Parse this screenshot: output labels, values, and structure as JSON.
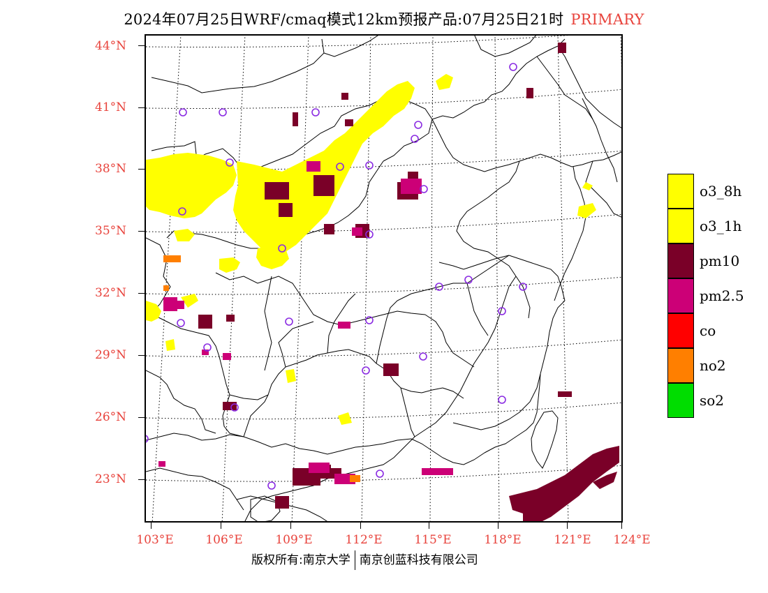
{
  "header": {
    "title": "2024年07月25日WRF/cmaq模式12km预报产品:07月25日21时",
    "tag": "PRIMARY",
    "tag_color": "#e8433c"
  },
  "axes": {
    "lat_labels": [
      "44°N",
      "41°N",
      "38°N",
      "35°N",
      "32°N",
      "29°N",
      "26°N",
      "23°N"
    ],
    "lon_labels": [
      "103°E",
      "106°E",
      "109°E",
      "112°E",
      "115°E",
      "118°E",
      "121°E",
      "124°E"
    ],
    "label_color": "#e8433c"
  },
  "legend": {
    "items": [
      {
        "label": "o3_8h",
        "color": "#ffff00"
      },
      {
        "label": "o3_1h",
        "color": "#ffff00"
      },
      {
        "label": "pm10",
        "color": "#7a0028"
      },
      {
        "label": "pm2.5",
        "color": "#cc0077"
      },
      {
        "label": "co",
        "color": "#ff0000"
      },
      {
        "label": "no2",
        "color": "#ff7f00"
      },
      {
        "label": "so2",
        "color": "#00dd00"
      }
    ]
  },
  "footer": {
    "left": "版权所有:南京大学",
    "right": "南京创蓝科技有限公司"
  },
  "map": {
    "pollutant_colors": {
      "o3": "#ffff00",
      "pm10": "#7a0028",
      "pm25": "#cc0077",
      "no2": "#ff7f00",
      "station_marker": "#8a2be2"
    }
  }
}
